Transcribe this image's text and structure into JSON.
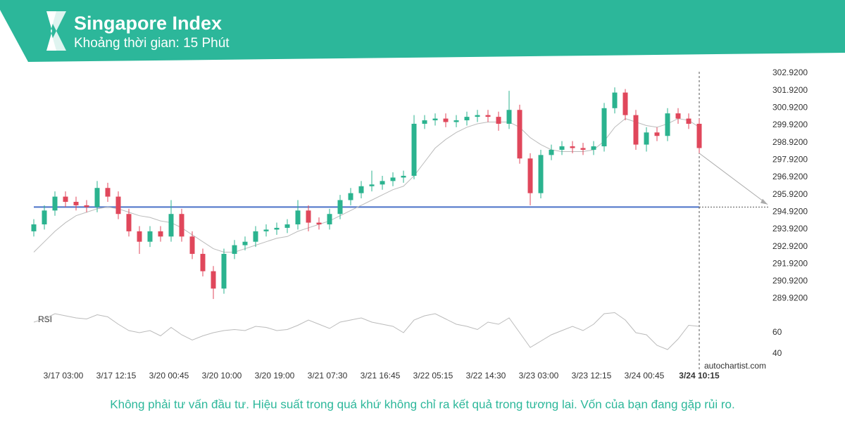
{
  "chart_data": {
    "type": "candlestick",
    "title": "Singapore Index",
    "subtitle": "Khoảng thời gian: 15 Phút",
    "footer": "Không phải tư vấn đầu tư. Hiệu suất trong quá khứ không chỉ ra kết quả trong tương lai. Vốn của bạn đang gặp rủi ro.",
    "watermark": "autochartist.com",
    "xlim": [
      0,
      69.6
    ],
    "xticks": [
      {
        "value": 2.8,
        "label": "3/17 03:00"
      },
      {
        "value": 7.8,
        "label": "3/17 12:15"
      },
      {
        "value": 12.8,
        "label": "3/20 00:45"
      },
      {
        "value": 17.8,
        "label": "3/20 10:00"
      },
      {
        "value": 22.8,
        "label": "3/20 19:00"
      },
      {
        "value": 27.8,
        "label": "3/21 07:30"
      },
      {
        "value": 32.8,
        "label": "3/21 16:45"
      },
      {
        "value": 37.8,
        "label": "3/22 05:15"
      },
      {
        "value": 42.8,
        "label": "3/22 14:30"
      },
      {
        "value": 47.8,
        "label": "3/23 03:00"
      },
      {
        "value": 52.8,
        "label": "3/23 12:15"
      },
      {
        "value": 57.8,
        "label": "3/24 00:45"
      },
      {
        "value": 63,
        "label": "3/24 10:15"
      }
    ],
    "ylim": [
      289.7,
      303.0
    ],
    "yticks": [
      {
        "value": 302.92,
        "label": "302.9200"
      },
      {
        "value": 301.92,
        "label": "301.9200"
      },
      {
        "value": 300.92,
        "label": "300.9200"
      },
      {
        "value": 299.92,
        "label": "299.9200"
      },
      {
        "value": 298.92,
        "label": "298.9200"
      },
      {
        "value": 297.92,
        "label": "297.9200"
      },
      {
        "value": 296.92,
        "label": "296.9200"
      },
      {
        "value": 295.92,
        "label": "295.9200"
      },
      {
        "value": 294.92,
        "label": "294.9200"
      },
      {
        "value": 293.92,
        "label": "293.9200"
      },
      {
        "value": 292.92,
        "label": "292.9200"
      },
      {
        "value": 291.92,
        "label": "291.9200"
      },
      {
        "value": 290.92,
        "label": "290.9200"
      },
      {
        "value": 289.92,
        "label": "289.9200"
      }
    ],
    "up_color": "#2bb38f",
    "down_color": "#e0475b",
    "open": [
      293.8,
      294.2,
      295.0,
      295.8,
      295.5,
      295.3,
      295.2,
      296.3,
      295.8,
      294.8,
      293.8,
      293.2,
      293.8,
      293.5,
      294.8,
      293.5,
      292.5,
      291.5,
      290.5,
      292.5,
      293.0,
      293.2,
      293.8,
      293.9,
      294.0,
      294.2,
      295.0,
      294.3,
      294.2,
      294.8,
      295.6,
      296.0,
      296.4,
      296.5,
      296.7,
      296.9,
      297.0,
      300.0,
      300.2,
      300.3,
      300.1,
      300.2,
      300.4,
      300.5,
      300.4,
      300.0,
      300.8,
      298.0,
      296.0,
      298.2,
      298.5,
      298.7,
      298.6,
      298.5,
      298.7,
      300.9,
      301.8,
      300.5,
      298.8,
      299.5,
      299.3,
      300.6,
      300.3,
      300.0
    ],
    "high": [
      294.5,
      295.3,
      296.1,
      296.1,
      295.8,
      295.6,
      296.7,
      296.6,
      296.1,
      295.1,
      294.1,
      294.1,
      294.1,
      295.6,
      295.1,
      293.8,
      292.8,
      291.8,
      292.8,
      293.3,
      293.5,
      294.1,
      294.2,
      294.3,
      294.5,
      295.6,
      295.3,
      294.6,
      295.1,
      295.9,
      296.3,
      296.7,
      297.3,
      297.0,
      297.2,
      297.3,
      300.5,
      300.5,
      300.6,
      300.6,
      300.5,
      300.7,
      300.8,
      300.8,
      300.7,
      301.9,
      301.1,
      298.3,
      298.5,
      298.8,
      299.0,
      299.0,
      298.9,
      299.0,
      301.2,
      302.1,
      302.0,
      300.8,
      299.8,
      299.8,
      300.9,
      300.9,
      300.6,
      300.3
    ],
    "low": [
      293.5,
      293.9,
      294.7,
      295.2,
      295.0,
      294.9,
      294.9,
      295.5,
      294.5,
      293.5,
      292.5,
      292.9,
      293.2,
      293.2,
      293.2,
      292.2,
      291.2,
      289.9,
      290.2,
      292.2,
      292.7,
      292.9,
      293.5,
      293.6,
      293.7,
      293.9,
      293.8,
      293.9,
      293.9,
      294.5,
      295.3,
      295.7,
      296.1,
      296.2,
      296.4,
      296.6,
      296.8,
      299.7,
      299.9,
      299.8,
      299.8,
      299.9,
      300.1,
      300.1,
      299.6,
      299.7,
      297.7,
      295.3,
      295.7,
      297.9,
      298.2,
      298.3,
      298.2,
      298.2,
      298.4,
      300.6,
      300.2,
      298.5,
      298.4,
      299.0,
      299.0,
      300.0,
      299.7,
      298.3
    ],
    "close": [
      294.2,
      295.0,
      295.8,
      295.5,
      295.3,
      295.2,
      296.3,
      295.8,
      294.8,
      293.8,
      293.2,
      293.8,
      293.5,
      294.8,
      293.5,
      292.5,
      291.5,
      290.5,
      292.5,
      293.0,
      293.2,
      293.8,
      293.9,
      294.0,
      294.2,
      295.0,
      294.3,
      294.2,
      294.8,
      295.6,
      296.0,
      296.4,
      296.5,
      296.7,
      296.9,
      297.0,
      300.0,
      300.2,
      300.3,
      300.1,
      300.2,
      300.4,
      300.5,
      300.4,
      300.0,
      300.8,
      298.0,
      296.0,
      298.2,
      298.5,
      298.7,
      298.6,
      298.5,
      298.7,
      300.9,
      301.8,
      300.5,
      298.8,
      299.5,
      299.3,
      300.6,
      300.3,
      300.0,
      298.6
    ],
    "ma": {
      "color": "#bbbbbb",
      "values": [
        292.6,
        293.2,
        293.8,
        294.3,
        294.7,
        294.9,
        295.1,
        295.2,
        295.1,
        294.9,
        294.7,
        294.6,
        294.4,
        294.3,
        294.0,
        293.6,
        293.2,
        292.8,
        292.6,
        292.6,
        292.8,
        293.0,
        293.2,
        293.4,
        293.5,
        293.8,
        294.0,
        294.2,
        294.4,
        294.7,
        295.0,
        295.3,
        295.6,
        295.9,
        296.2,
        296.4,
        297.0,
        297.8,
        298.6,
        299.1,
        299.5,
        299.8,
        300.0,
        300.1,
        300.1,
        300.1,
        299.8,
        299.2,
        298.8,
        298.5,
        298.4,
        298.4,
        298.4,
        298.5,
        299.0,
        299.8,
        300.3,
        300.1,
        299.9,
        299.8,
        300.0,
        300.3,
        300.2,
        299.8
      ]
    },
    "support": {
      "value": 295.2,
      "color": "#4a72c8"
    },
    "forecast": {
      "from": 298.3,
      "to": 295.35,
      "color": "#aaaaaa"
    },
    "rsi": {
      "label": "RSI",
      "color": "#bbbbbb",
      "ylim": [
        30,
        82
      ],
      "yticks": [
        60,
        40
      ],
      "values": [
        70,
        73,
        78,
        76,
        74,
        73,
        77,
        75,
        68,
        62,
        60,
        62,
        57,
        65,
        58,
        53,
        57,
        60,
        62,
        63,
        62,
        66,
        65,
        62,
        63,
        67,
        72,
        68,
        64,
        70,
        72,
        74,
        70,
        68,
        66,
        60,
        72,
        76,
        78,
        73,
        68,
        66,
        63,
        70,
        68,
        74,
        60,
        46,
        52,
        58,
        62,
        66,
        62,
        68,
        78,
        79,
        72,
        60,
        58,
        48,
        44,
        54,
        67,
        66
      ]
    }
  }
}
